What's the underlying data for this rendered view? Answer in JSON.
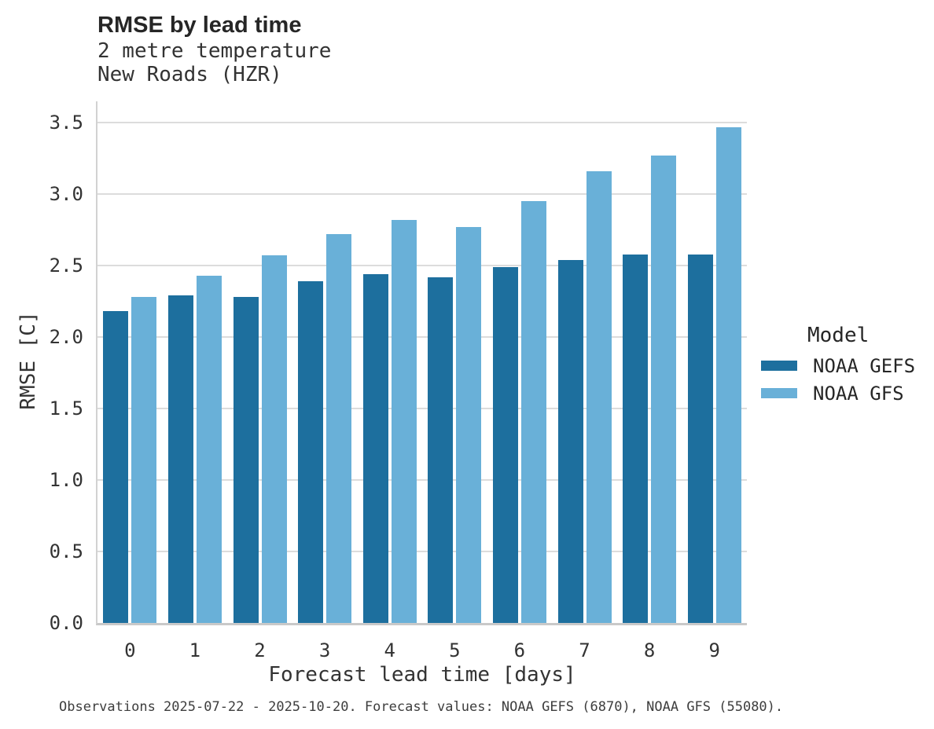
{
  "header": {
    "title": "RMSE by lead time",
    "subtitle_line1": "2 metre temperature",
    "subtitle_line2": "New Roads (HZR)"
  },
  "chart_data": {
    "type": "bar",
    "title": "RMSE by lead time",
    "subtitle": [
      "2 metre temperature",
      "New Roads (HZR)"
    ],
    "categories": [
      "0",
      "1",
      "2",
      "3",
      "4",
      "5",
      "6",
      "7",
      "8",
      "9"
    ],
    "series": [
      {
        "name": "NOAA GEFS",
        "color": "#1d6f9e",
        "values": [
          2.18,
          2.29,
          2.28,
          2.39,
          2.44,
          2.42,
          2.49,
          2.54,
          2.58,
          2.58
        ]
      },
      {
        "name": "NOAA GFS",
        "color": "#69b0d8",
        "values": [
          2.28,
          2.43,
          2.57,
          2.72,
          2.82,
          2.77,
          2.95,
          3.16,
          3.27,
          3.47
        ]
      }
    ],
    "xlabel": "Forecast lead time [days]",
    "ylabel": "RMSE [C]",
    "ylim": [
      0,
      3.65
    ],
    "yticks": [
      0.0,
      0.5,
      1.0,
      1.5,
      2.0,
      2.5,
      3.0,
      3.5
    ],
    "ytick_labels": [
      "0.0",
      "0.5",
      "1.0",
      "1.5",
      "2.0",
      "2.5",
      "3.0",
      "3.5"
    ],
    "grid": true,
    "legend_title": "Model",
    "legend_position": "right"
  },
  "legend": {
    "title": "Model",
    "entries": [
      {
        "label": "NOAA GEFS",
        "color": "#1d6f9e"
      },
      {
        "label": "NOAA GFS",
        "color": "#69b0d8"
      }
    ]
  },
  "footer": {
    "caption": "Observations 2025-07-22 - 2025-10-20. Forecast values: NOAA GEFS (6870), NOAA GFS (55080)."
  },
  "colors": {
    "series_dark": "#1d6f9e",
    "series_light": "#69b0d8",
    "gridline": "#dcdcdc",
    "axis_line": "#c9c9c9",
    "text": "#333333"
  }
}
